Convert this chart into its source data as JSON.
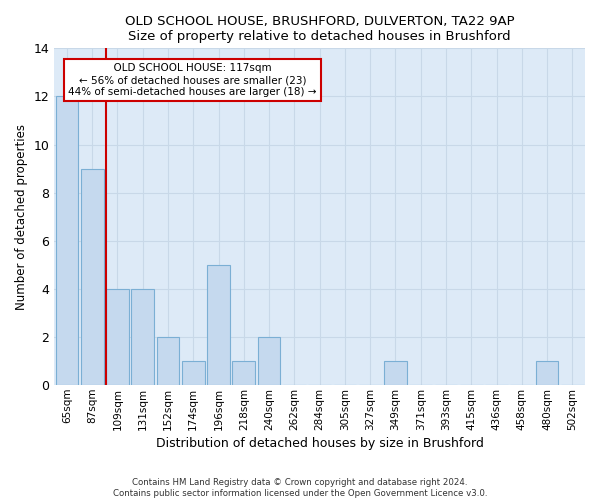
{
  "title": "OLD SCHOOL HOUSE, BRUSHFORD, DULVERTON, TA22 9AP",
  "subtitle": "Size of property relative to detached houses in Brushford",
  "xlabel": "Distribution of detached houses by size in Brushford",
  "ylabel": "Number of detached properties",
  "footnote1": "Contains HM Land Registry data © Crown copyright and database right 2024.",
  "footnote2": "Contains public sector information licensed under the Open Government Licence v3.0.",
  "categories": [
    "65sqm",
    "87sqm",
    "109sqm",
    "131sqm",
    "152sqm",
    "174sqm",
    "196sqm",
    "218sqm",
    "240sqm",
    "262sqm",
    "284sqm",
    "305sqm",
    "327sqm",
    "349sqm",
    "371sqm",
    "393sqm",
    "415sqm",
    "436sqm",
    "458sqm",
    "480sqm",
    "502sqm"
  ],
  "values": [
    12,
    9,
    4,
    4,
    2,
    1,
    5,
    1,
    2,
    0,
    0,
    0,
    0,
    1,
    0,
    0,
    0,
    0,
    0,
    1,
    0
  ],
  "bar_color": "#c5d9ee",
  "bar_edge_color": "#7bafd4",
  "background_color": "#ddeaf7",
  "grid_color": "#c8d8e8",
  "vline_color": "#cc0000",
  "vline_index": 2,
  "annotation_text": "  OLD SCHOOL HOUSE: 117sqm  \n← 56% of detached houses are smaller (23)\n44% of semi-detached houses are larger (18) →",
  "annotation_box_facecolor": "#ffffff",
  "annotation_box_edgecolor": "#cc0000",
  "ylim": [
    0,
    14
  ],
  "yticks": [
    0,
    2,
    4,
    6,
    8,
    10,
    12,
    14
  ],
  "fig_facecolor": "#ffffff",
  "title_fontsize": 10,
  "footnote_color": "#333333"
}
